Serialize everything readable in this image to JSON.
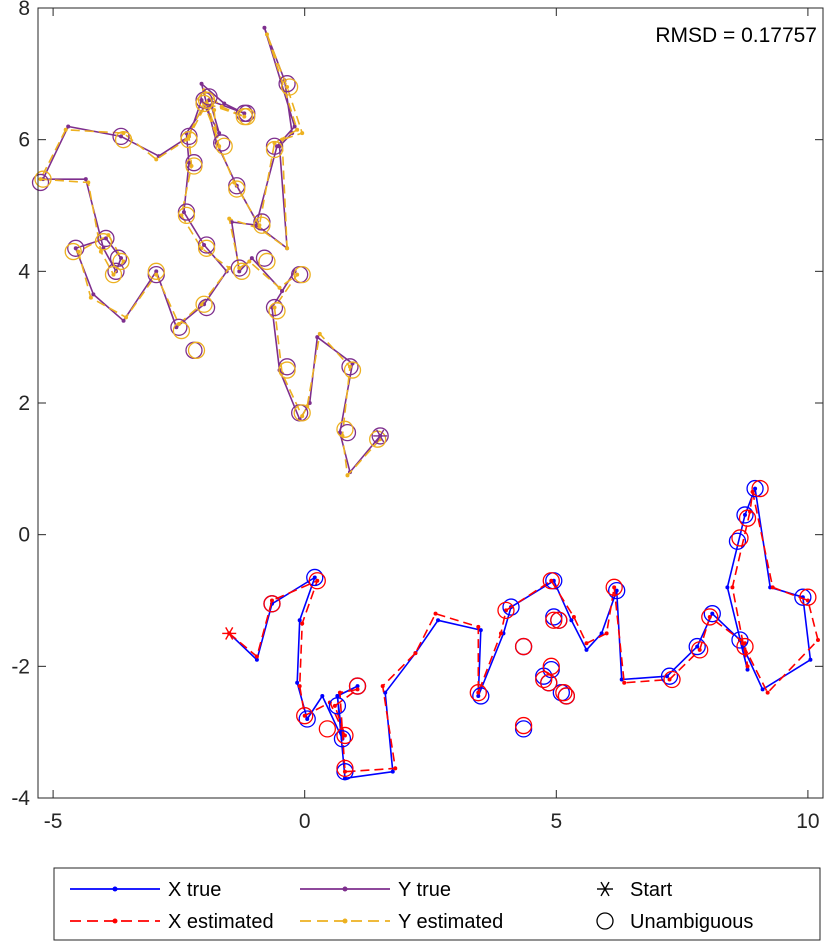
{
  "chart_data": {
    "type": "line",
    "title": "",
    "xlabel": "",
    "ylabel": "",
    "xlim": [
      -5.3,
      10.3
    ],
    "ylim": [
      -4,
      8
    ],
    "xticks": [
      -5,
      0,
      5,
      10
    ],
    "xtick_labels": [
      "-5",
      "0",
      "5",
      "10"
    ],
    "yticks": [
      -4,
      -2,
      0,
      2,
      4,
      6,
      8
    ],
    "ytick_labels": [
      "-4",
      "-2",
      "0",
      "2",
      "4",
      "6",
      "8"
    ],
    "grid": false,
    "annotation": "RMSD = 0.17757",
    "legend": {
      "placement": "bottom-outside",
      "entries": [
        {
          "label": "X true",
          "key": "x_true"
        },
        {
          "label": "Y true",
          "key": "y_true"
        },
        {
          "label": "Start",
          "key": "start"
        },
        {
          "label": "X estimated",
          "key": "x_est"
        },
        {
          "label": "Y estimated",
          "key": "y_est"
        },
        {
          "label": "Unambiguous",
          "key": "unamb"
        }
      ]
    },
    "colors": {
      "x_true": "#0000ff",
      "x_est": "#ff0000",
      "y_true": "#7e2f8e",
      "y_est": "#edb120",
      "marker": "#000000"
    },
    "series": [
      {
        "key": "x_true",
        "style": "solid",
        "points": [
          [
            -1.5,
            -1.5
          ],
          [
            -0.95,
            -1.9
          ],
          [
            -0.65,
            -1.05
          ],
          [
            0.2,
            -0.65
          ],
          [
            -0.1,
            -1.3
          ],
          [
            -0.15,
            -2.25
          ],
          [
            0.05,
            -2.8
          ],
          [
            0.35,
            -2.45
          ],
          [
            0.75,
            -3.1
          ],
          [
            0.65,
            -2.45
          ],
          [
            1.05,
            -2.3
          ],
          [
            0.65,
            -2.45
          ],
          [
            0.8,
            -3.7
          ],
          [
            1.75,
            -3.6
          ],
          [
            1.6,
            -2.4
          ],
          [
            2.2,
            -1.8
          ],
          [
            2.65,
            -1.3
          ],
          [
            3.5,
            -1.45
          ],
          [
            3.45,
            -2.45
          ],
          [
            3.95,
            -1.5
          ],
          [
            4.1,
            -1.1
          ],
          [
            4.95,
            -0.7
          ],
          [
            5.3,
            -1.3
          ],
          [
            5.6,
            -1.75
          ],
          [
            5.9,
            -1.5
          ],
          [
            6.2,
            -0.85
          ],
          [
            6.3,
            -2.2
          ],
          [
            7.2,
            -2.15
          ],
          [
            7.8,
            -1.7
          ],
          [
            8.1,
            -1.2
          ],
          [
            8.65,
            -1.6
          ],
          [
            8.8,
            -2.05
          ],
          [
            8.4,
            -0.8
          ],
          [
            8.75,
            0.3
          ],
          [
            8.95,
            0.7
          ],
          [
            9.25,
            -0.8
          ],
          [
            9.9,
            -0.95
          ],
          [
            10.05,
            -1.9
          ],
          [
            9.1,
            -2.35
          ],
          [
            8.65,
            -1.6
          ]
        ]
      },
      {
        "key": "x_est",
        "style": "dashed",
        "points": [
          [
            -1.5,
            -1.5
          ],
          [
            -0.95,
            -1.85
          ],
          [
            -0.65,
            -1.0
          ],
          [
            0.25,
            -0.7
          ],
          [
            -0.05,
            -1.35
          ],
          [
            -0.1,
            -2.3
          ],
          [
            0.0,
            -2.75
          ],
          [
            0.5,
            -2.55
          ],
          [
            0.8,
            -3.05
          ],
          [
            0.6,
            -2.6
          ],
          [
            1.05,
            -2.35
          ],
          [
            0.7,
            -2.4
          ],
          [
            0.8,
            -3.6
          ],
          [
            1.8,
            -3.55
          ],
          [
            1.55,
            -2.3
          ],
          [
            2.2,
            -1.8
          ],
          [
            2.6,
            -1.2
          ],
          [
            3.45,
            -1.4
          ],
          [
            3.45,
            -2.4
          ],
          [
            3.9,
            -1.5
          ],
          [
            4.0,
            -1.15
          ],
          [
            4.9,
            -0.7
          ],
          [
            5.35,
            -1.25
          ],
          [
            5.6,
            -1.65
          ],
          [
            6.0,
            -1.5
          ],
          [
            6.15,
            -0.8
          ],
          [
            6.35,
            -2.25
          ],
          [
            7.25,
            -2.2
          ],
          [
            7.85,
            -1.75
          ],
          [
            8.05,
            -1.25
          ],
          [
            8.75,
            -1.65
          ],
          [
            8.8,
            -2.0
          ],
          [
            8.5,
            -0.8
          ],
          [
            8.85,
            0.35
          ],
          [
            8.9,
            0.65
          ],
          [
            9.3,
            -0.8
          ],
          [
            10.0,
            -1.0
          ],
          [
            10.2,
            -1.6
          ],
          [
            9.2,
            -2.4
          ],
          [
            8.7,
            -1.65
          ]
        ]
      },
      {
        "key": "y_true",
        "style": "solid",
        "points": [
          [
            1.5,
            1.5
          ],
          [
            0.9,
            0.95
          ],
          [
            0.7,
            1.55
          ],
          [
            0.95,
            2.6
          ],
          [
            0.25,
            3.0
          ],
          [
            0.1,
            2.0
          ],
          [
            -0.1,
            1.75
          ],
          [
            -0.5,
            2.5
          ],
          [
            -0.65,
            3.45
          ],
          [
            -0.2,
            4.0
          ],
          [
            -0.45,
            3.7
          ],
          [
            -1.05,
            4.2
          ],
          [
            -1.3,
            4.0
          ],
          [
            -1.45,
            4.75
          ],
          [
            -0.95,
            4.7
          ],
          [
            -0.35,
            4.35
          ],
          [
            -0.5,
            5.9
          ],
          [
            -0.25,
            6.1
          ],
          [
            -0.4,
            6.9
          ],
          [
            -0.8,
            7.7
          ],
          [
            -0.2,
            6.2
          ],
          [
            -0.55,
            5.9
          ],
          [
            -0.95,
            4.75
          ],
          [
            -1.35,
            5.3
          ],
          [
            -1.75,
            5.95
          ],
          [
            -2.05,
            6.85
          ],
          [
            -1.6,
            6.55
          ],
          [
            -1.2,
            6.4
          ],
          [
            -1.9,
            6.6
          ],
          [
            -2.35,
            6.1
          ],
          [
            -2.3,
            5.65
          ],
          [
            -2.4,
            4.9
          ],
          [
            -2.0,
            4.4
          ],
          [
            -1.55,
            4.0
          ],
          [
            -2.0,
            3.5
          ],
          [
            -2.55,
            3.15
          ],
          [
            -2.95,
            4.0
          ],
          [
            -3.6,
            3.25
          ],
          [
            -4.2,
            3.65
          ],
          [
            -4.55,
            4.35
          ],
          [
            -3.95,
            4.5
          ],
          [
            -3.65,
            4.2
          ],
          [
            -3.75,
            4.0
          ],
          [
            -4.0,
            4.35
          ],
          [
            -4.35,
            5.4
          ],
          [
            -5.2,
            5.4
          ],
          [
            -4.7,
            6.2
          ],
          [
            -3.65,
            6.05
          ],
          [
            -2.9,
            5.75
          ],
          [
            -2.3,
            6.05
          ],
          [
            -2.05,
            6.6
          ],
          [
            -1.7,
            6.1
          ],
          [
            -1.85,
            6.5
          ]
        ]
      },
      {
        "key": "y_est",
        "style": "dashed",
        "points": [
          [
            1.5,
            1.45
          ],
          [
            0.85,
            0.9
          ],
          [
            0.75,
            1.5
          ],
          [
            0.9,
            2.55
          ],
          [
            0.3,
            3.05
          ],
          [
            0.05,
            1.95
          ],
          [
            -0.05,
            1.8
          ],
          [
            -0.45,
            2.45
          ],
          [
            -0.6,
            3.45
          ],
          [
            -0.15,
            3.95
          ],
          [
            -0.5,
            3.75
          ],
          [
            -1.1,
            4.15
          ],
          [
            -1.3,
            4.05
          ],
          [
            -1.5,
            4.8
          ],
          [
            -0.9,
            4.65
          ],
          [
            -0.35,
            4.35
          ],
          [
            -0.45,
            6.0
          ],
          [
            -0.05,
            6.1
          ],
          [
            -0.35,
            6.8
          ],
          [
            -0.75,
            7.6
          ],
          [
            -0.15,
            6.15
          ],
          [
            -0.6,
            5.95
          ],
          [
            -0.9,
            4.7
          ],
          [
            -1.4,
            5.35
          ],
          [
            -1.7,
            5.9
          ],
          [
            -2.0,
            6.75
          ],
          [
            -1.65,
            6.5
          ],
          [
            -1.2,
            6.35
          ],
          [
            -1.95,
            6.55
          ],
          [
            -2.3,
            6.05
          ],
          [
            -2.25,
            5.6
          ],
          [
            -2.45,
            4.85
          ],
          [
            -2.05,
            4.35
          ],
          [
            -1.5,
            4.05
          ],
          [
            -2.05,
            3.5
          ],
          [
            -2.5,
            3.2
          ],
          [
            -2.95,
            3.95
          ],
          [
            -3.55,
            3.3
          ],
          [
            -4.25,
            3.6
          ],
          [
            -4.5,
            4.3
          ],
          [
            -3.9,
            4.55
          ],
          [
            -3.6,
            4.15
          ],
          [
            -3.8,
            3.95
          ],
          [
            -4.05,
            4.3
          ],
          [
            -4.3,
            5.35
          ],
          [
            -5.25,
            5.4
          ],
          [
            -4.75,
            6.15
          ],
          [
            -3.6,
            6.1
          ],
          [
            -2.95,
            5.7
          ],
          [
            -2.35,
            6.0
          ],
          [
            -2.0,
            6.55
          ],
          [
            -1.75,
            6.05
          ],
          [
            -1.8,
            6.45
          ]
        ]
      }
    ],
    "start_points": [
      [
        -1.5,
        -1.5
      ],
      [
        1.5,
        1.5
      ]
    ],
    "unambiguous_circles": {
      "x_true": [
        [
          0.2,
          -0.65
        ],
        [
          -0.65,
          -1.05
        ],
        [
          0.05,
          -2.8
        ],
        [
          0.65,
          -2.6
        ],
        [
          1.05,
          -2.3
        ],
        [
          0.75,
          -3.1
        ],
        [
          0.8,
          -3.6
        ],
        [
          3.5,
          -2.45
        ],
        [
          4.1,
          -1.1
        ],
        [
          4.35,
          -1.7
        ],
        [
          4.35,
          -2.95
        ],
        [
          4.95,
          -0.7
        ],
        [
          4.95,
          -1.25
        ],
        [
          5.05,
          -1.3
        ],
        [
          4.9,
          -2.05
        ],
        [
          4.75,
          -2.15
        ],
        [
          4.85,
          -2.25
        ],
        [
          5.1,
          -2.4
        ],
        [
          5.2,
          -2.45
        ],
        [
          6.2,
          -0.85
        ],
        [
          7.25,
          -2.15
        ],
        [
          7.8,
          -1.7
        ],
        [
          8.1,
          -1.2
        ],
        [
          8.65,
          -1.6
        ],
        [
          8.6,
          -0.1
        ],
        [
          8.75,
          0.3
        ],
        [
          8.95,
          0.7
        ],
        [
          9.9,
          -0.95
        ]
      ],
      "x_est": [
        [
          0.25,
          -0.7
        ],
        [
          -0.65,
          -1.05
        ],
        [
          0.0,
          -2.75
        ],
        [
          0.45,
          -2.95
        ],
        [
          1.05,
          -2.3
        ],
        [
          0.8,
          -3.05
        ],
        [
          0.8,
          -3.55
        ],
        [
          3.45,
          -2.4
        ],
        [
          4.0,
          -1.15
        ],
        [
          4.35,
          -1.7
        ],
        [
          4.35,
          -2.9
        ],
        [
          4.9,
          -0.7
        ],
        [
          4.95,
          -1.3
        ],
        [
          5.05,
          -1.3
        ],
        [
          4.9,
          -2.0
        ],
        [
          4.75,
          -2.2
        ],
        [
          4.85,
          -2.25
        ],
        [
          5.15,
          -2.4
        ],
        [
          5.2,
          -2.45
        ],
        [
          6.15,
          -0.8
        ],
        [
          7.3,
          -2.2
        ],
        [
          7.85,
          -1.75
        ],
        [
          8.05,
          -1.25
        ],
        [
          8.75,
          -1.7
        ],
        [
          8.65,
          -0.05
        ],
        [
          8.8,
          0.25
        ],
        [
          9.05,
          0.7
        ],
        [
          10.0,
          -0.95
        ]
      ],
      "y_true": [
        [
          1.5,
          1.5
        ],
        [
          0.85,
          1.55
        ],
        [
          0.9,
          2.55
        ],
        [
          -0.1,
          1.85
        ],
        [
          -0.35,
          2.55
        ],
        [
          -0.6,
          3.45
        ],
        [
          -0.1,
          3.95
        ],
        [
          -0.8,
          4.2
        ],
        [
          -1.3,
          4.05
        ],
        [
          -0.85,
          4.75
        ],
        [
          -0.6,
          5.9
        ],
        [
          -0.35,
          6.85
        ],
        [
          -1.35,
          5.3
        ],
        [
          -1.65,
          5.95
        ],
        [
          -1.9,
          6.65
        ],
        [
          -1.15,
          6.4
        ],
        [
          -2.3,
          6.05
        ],
        [
          -2.2,
          5.65
        ],
        [
          -2.35,
          4.9
        ],
        [
          -1.95,
          4.4
        ],
        [
          -1.95,
          3.45
        ],
        [
          -2.5,
          3.15
        ],
        [
          -2.2,
          2.8
        ],
        [
          -2.95,
          3.95
        ],
        [
          -3.7,
          4.2
        ],
        [
          -3.75,
          4.0
        ],
        [
          -3.95,
          4.5
        ],
        [
          -4.55,
          4.35
        ],
        [
          -5.25,
          5.35
        ],
        [
          -3.65,
          6.05
        ],
        [
          -1.2,
          6.4
        ],
        [
          -2.0,
          6.6
        ]
      ],
      "y_est": [
        [
          1.45,
          1.45
        ],
        [
          0.8,
          1.6
        ],
        [
          0.95,
          2.5
        ],
        [
          -0.05,
          1.85
        ],
        [
          -0.35,
          2.5
        ],
        [
          -0.55,
          3.4
        ],
        [
          -0.05,
          3.95
        ],
        [
          -0.75,
          4.15
        ],
        [
          -1.25,
          4.0
        ],
        [
          -0.85,
          4.7
        ],
        [
          -0.6,
          5.85
        ],
        [
          -0.3,
          6.8
        ],
        [
          -1.35,
          5.25
        ],
        [
          -1.6,
          5.9
        ],
        [
          -1.95,
          6.6
        ],
        [
          -1.15,
          6.35
        ],
        [
          -2.3,
          6.0
        ],
        [
          -2.2,
          5.6
        ],
        [
          -2.35,
          4.85
        ],
        [
          -1.95,
          4.35
        ],
        [
          -2.0,
          3.5
        ],
        [
          -2.45,
          3.1
        ],
        [
          -2.15,
          2.8
        ],
        [
          -2.95,
          4.0
        ],
        [
          -3.65,
          4.15
        ],
        [
          -3.8,
          3.95
        ],
        [
          -4.0,
          4.45
        ],
        [
          -4.6,
          4.3
        ],
        [
          -5.2,
          5.4
        ],
        [
          -3.6,
          6.0
        ],
        [
          -1.2,
          6.35
        ],
        [
          -2.0,
          6.55
        ]
      ]
    }
  }
}
